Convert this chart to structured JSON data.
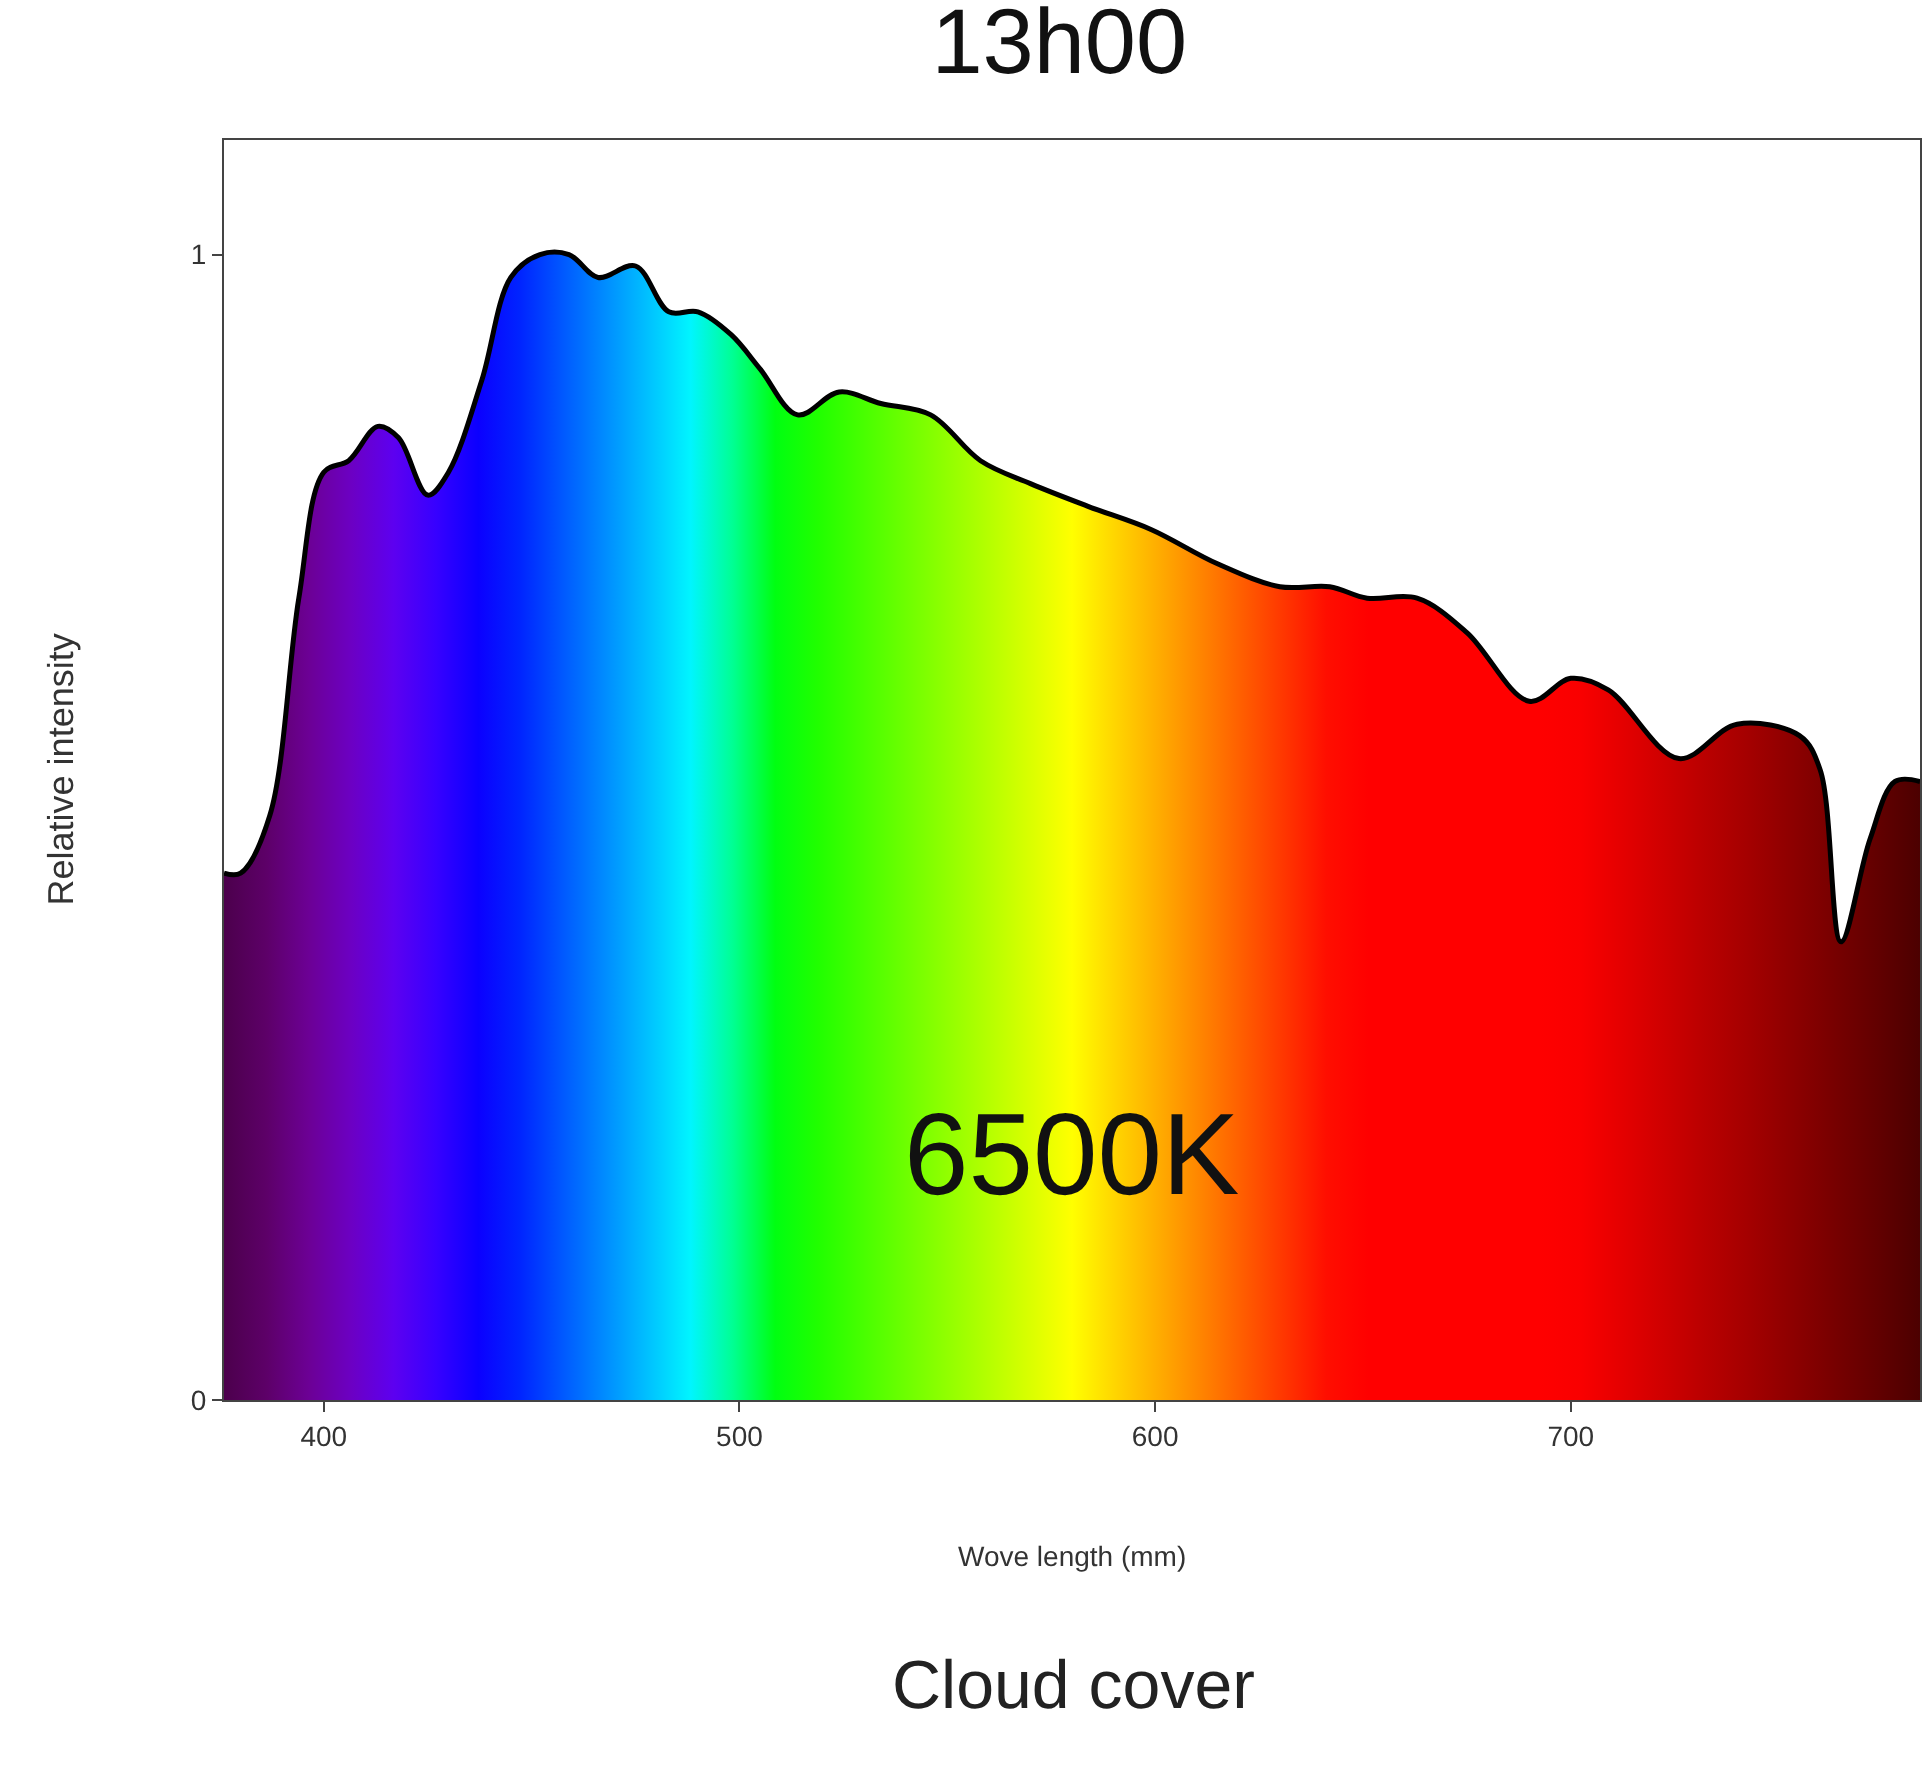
{
  "chart_data": {
    "type": "area",
    "title": "13h00",
    "xlabel": "Wove length (mm)",
    "ylabel": "Relative intensity",
    "annotations": [
      "6500K",
      "Cloud cover"
    ],
    "x": [
      376,
      380,
      387,
      394,
      400,
      406,
      413,
      418,
      425,
      430,
      438,
      445,
      452,
      459,
      466,
      475,
      483,
      490,
      498,
      505,
      514,
      524,
      534,
      546,
      558,
      570,
      584,
      599,
      615,
      630,
      642,
      651,
      663,
      675,
      690,
      700,
      709,
      726,
      740,
      755,
      760,
      765,
      772,
      778,
      784
    ],
    "series": [
      {
        "color": "#000000",
        "values": [
          0.46,
          0.46,
          0.51,
          0.7,
          0.81,
          0.82,
          0.85,
          0.84,
          0.79,
          0.81,
          0.89,
          0.98,
          1.0,
          1.0,
          0.98,
          0.99,
          0.95,
          0.95,
          0.93,
          0.9,
          0.86,
          0.88,
          0.87,
          0.86,
          0.82,
          0.8,
          0.78,
          0.76,
          0.73,
          0.71,
          0.71,
          0.7,
          0.7,
          0.67,
          0.61,
          0.63,
          0.62,
          0.56,
          0.59,
          0.58,
          0.55,
          0.4,
          0.49,
          0.54,
          0.54
        ]
      }
    ],
    "xlim": [
      376,
      784
    ],
    "xticks": [
      400,
      500,
      600,
      700
    ],
    "ylim": [
      0,
      1.1
    ],
    "yticks": [
      0,
      1
    ]
  }
}
